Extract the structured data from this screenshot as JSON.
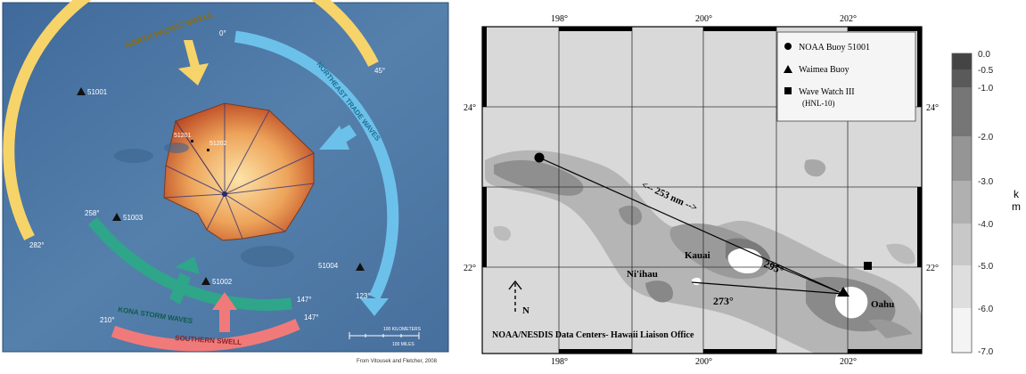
{
  "left_map": {
    "swell_labels": {
      "north_pacific": "NORTH PACIFIC SWELL",
      "northeast_trade": "NORTHEAST TRADE WAVES",
      "kona": "KONA STORM WAVES",
      "southern": "SOUTHERN SWELL"
    },
    "directions": {
      "north_zero": "0°",
      "deg45": "45°",
      "deg282": "282°",
      "deg258": "258°",
      "deg123": "123°",
      "deg147_green": "147°",
      "deg147_red": "147°",
      "deg210": "210°"
    },
    "buoys": {
      "b51001": "51001",
      "b51003": "51003",
      "b51004": "51004",
      "b51002": "51002",
      "b51201": "51201",
      "b51202": "51202"
    },
    "scale": {
      "km": "100 KILOMETERS",
      "mi": "100 MILES"
    },
    "credit": "From Vitousek and Fletcher, 2008",
    "colors": {
      "ocean": "#4f77a3",
      "north_pacific": "#f6d46a",
      "northeast_trade": "#6cc1ea",
      "kona": "#2fa58a",
      "southern": "#f07a7a"
    }
  },
  "right_map": {
    "longitude_labels": [
      "198°",
      "200°",
      "202°"
    ],
    "latitude_labels": [
      "24°",
      "22°"
    ],
    "legend": {
      "noaa": "NOAA Buoy 51001",
      "waimea": "Waimea Buoy",
      "wavewatch_line1": "Wave Watch III",
      "wavewatch_line2": "(HNL-10)"
    },
    "distance_label": "<-- 253 nm -->",
    "angles": {
      "a295": "295°",
      "a273": "273°"
    },
    "islands": {
      "kauai": "Kauai",
      "niihau": "Ni'ihau",
      "oahu": "Oahu"
    },
    "north_label": "N",
    "source": "NOAA/NESDIS Data Centers- Hawaii Liaison Office",
    "colorbar": {
      "unit_k": "k",
      "unit_m": "m",
      "ticks": [
        "0.0",
        "-0.5",
        "-1.0",
        "-2.0",
        "-3.0",
        "-4.0",
        "-5.0",
        "-6.0",
        "-7.0"
      ]
    }
  }
}
